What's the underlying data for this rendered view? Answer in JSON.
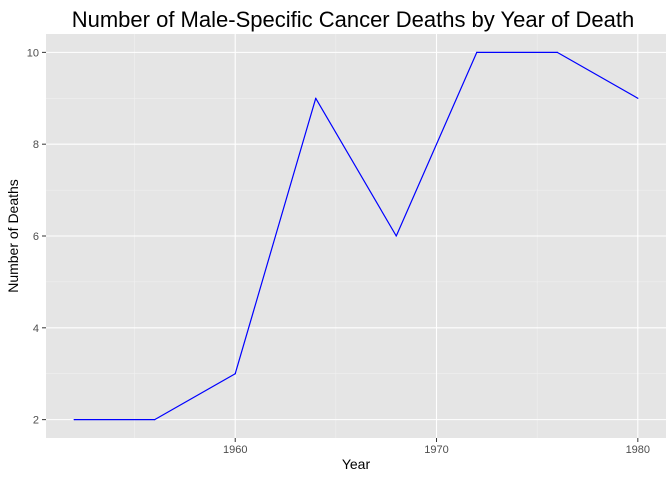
{
  "colors": {
    "panel_background": "#e5e5e5",
    "grid_major": "#ffffff",
    "grid_minor": "#f2f2f2",
    "line": "#0000ff",
    "tick": "#333333",
    "tick_label": "#4d4d4d"
  },
  "chart_data": {
    "type": "line",
    "title": "Number of Male-Specific Cancer Deaths by Year of Death",
    "xlabel": "Year",
    "ylabel": "Number of Deaths",
    "x": [
      1952,
      1956,
      1960,
      1964,
      1968,
      1972,
      1976,
      1980
    ],
    "series": [
      {
        "values": [
          2,
          2,
          3,
          9,
          6,
          10,
          10,
          9
        ]
      }
    ],
    "xlim": [
      1950.6,
      1981.4
    ],
    "ylim": [
      1.6,
      10.4
    ],
    "xticks": [
      1960,
      1970,
      1980
    ],
    "xticklabels": [
      "1960",
      "1970",
      "1980"
    ],
    "xminor": [
      1955,
      1965,
      1975
    ],
    "yticks": [
      2,
      4,
      6,
      8,
      10
    ],
    "yticklabels": [
      "2",
      "4",
      "6",
      "8",
      "10"
    ],
    "yminor": [
      3,
      5,
      7,
      9
    ],
    "grid": true,
    "legend": "none"
  }
}
